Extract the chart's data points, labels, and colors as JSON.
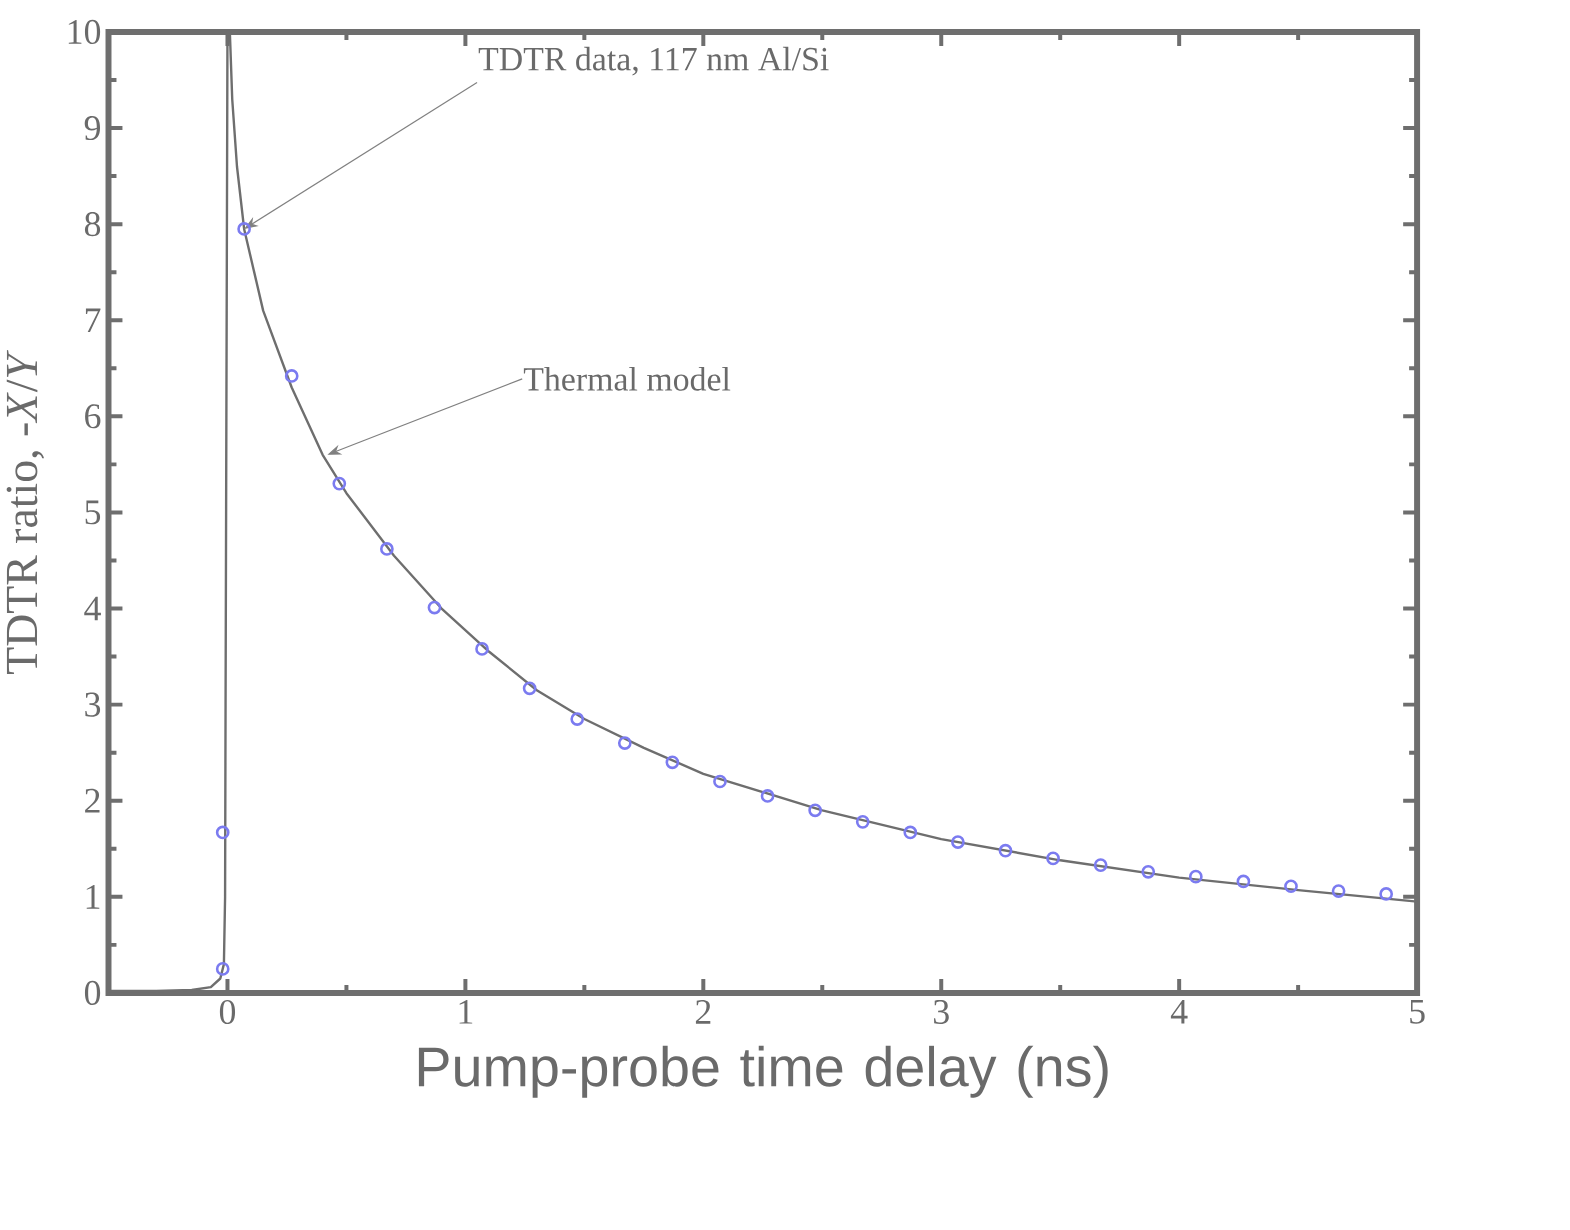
{
  "chart_data": {
    "type": "scatter",
    "xlabel": "Pump-probe time delay (ns)",
    "ylabel": "TDTR ratio, -*X*/*Y*",
    "xlim": [
      -0.5,
      5
    ],
    "ylim": [
      0,
      10
    ],
    "xticks": [
      0,
      1,
      2,
      3,
      4,
      5
    ],
    "yticks": [
      0,
      1,
      2,
      3,
      4,
      5,
      6,
      7,
      8,
      9,
      10
    ],
    "series": [
      {
        "type": "line",
        "color": "#6e6e6e",
        "marker": "none",
        "x": [
          -0.5,
          -0.3,
          -0.15,
          -0.07,
          -0.03,
          -0.015,
          -0.01,
          -0.008,
          0.0,
          0.01,
          0.02,
          0.04,
          0.07,
          0.15,
          0.27,
          0.4,
          0.5,
          0.7,
          0.9,
          1.1,
          1.3,
          1.5,
          1.75,
          2.0,
          2.5,
          3.0,
          3.5,
          4.0,
          4.5,
          5.0
        ],
        "values": [
          0.02,
          0.02,
          0.03,
          0.06,
          0.15,
          0.3,
          1.0,
          3.0,
          10,
          10,
          9.3,
          8.6,
          7.95,
          7.1,
          6.3,
          5.6,
          5.2,
          4.55,
          4.0,
          3.55,
          3.15,
          2.85,
          2.55,
          2.28,
          1.9,
          1.6,
          1.38,
          1.2,
          1.07,
          0.95
        ]
      },
      {
        "type": "scatter",
        "color": "#7b7bf0",
        "marker": "circle",
        "x": [
          -0.02,
          -0.02,
          0.07,
          0.27,
          0.47,
          0.67,
          0.87,
          1.07,
          1.27,
          1.47,
          1.67,
          1.87,
          2.07,
          2.27,
          2.47,
          2.67,
          2.87,
          3.07,
          3.27,
          3.47,
          3.67,
          3.87,
          4.07,
          4.27,
          4.47,
          4.67,
          4.87
        ],
        "values": [
          0.25,
          1.67,
          7.95,
          6.42,
          5.3,
          4.62,
          4.01,
          3.58,
          3.17,
          2.85,
          2.6,
          2.4,
          2.2,
          2.05,
          1.9,
          1.78,
          1.67,
          1.57,
          1.48,
          1.4,
          1.33,
          1.26,
          1.21,
          1.16,
          1.11,
          1.06,
          1.03
        ]
      }
    ],
    "annotations": [
      {
        "text": "TDTR data, 117 nm Al/Si",
        "x": 0.07,
        "y": 7.95
      },
      {
        "text": "Thermal model",
        "x": 0.42,
        "y": 5.6
      }
    ]
  }
}
